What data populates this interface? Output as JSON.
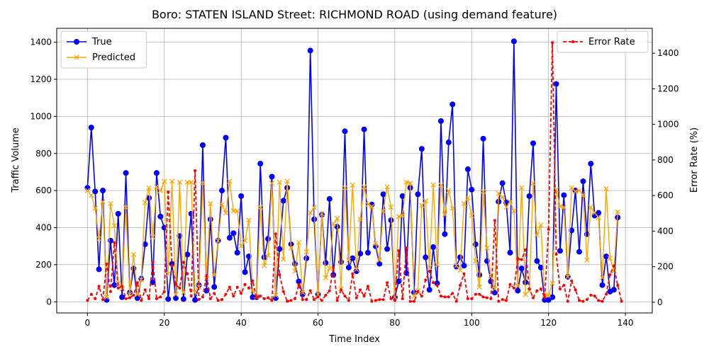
{
  "chart_data": {
    "type": "line",
    "title": "Boro: STATEN ISLAND Street: RICHMOND ROAD (using demand feature)",
    "xlabel": "Time Index",
    "ylabel": "Traffic Volume",
    "y2label": "Error Rate (%)",
    "xlim": [
      -8,
      147
    ],
    "ylim": [
      -60,
      1475
    ],
    "y2lim": [
      -60,
      1540
    ],
    "xticks": [
      0,
      20,
      40,
      60,
      80,
      100,
      120,
      140
    ],
    "yticks": [
      0,
      200,
      400,
      600,
      800,
      1000,
      1200,
      1400
    ],
    "y2ticks": [
      0,
      200,
      400,
      600,
      800,
      1000,
      1200,
      1400
    ],
    "grid": true,
    "legend_left": "upper-left",
    "legend_right": "upper-right",
    "colors": {
      "true": "#0000ff",
      "predicted": "#ffa500",
      "error": "#ff0000"
    },
    "series": [
      {
        "name": "True",
        "axis": "left",
        "style": "line-circle",
        "values": [
          615,
          940,
          595,
          175,
          600,
          10,
          330,
          90,
          475,
          25,
          695,
          50,
          180,
          20,
          125,
          310,
          560,
          105,
          695,
          460,
          400,
          15,
          205,
          20,
          355,
          15,
          255,
          475,
          10,
          90,
          845,
          60,
          445,
          80,
          330,
          600,
          885,
          345,
          370,
          265,
          570,
          160,
          245,
          25,
          25,
          745,
          240,
          340,
          675,
          20,
          285,
          545,
          615,
          310,
          205,
          110,
          40,
          235,
          1355,
          445,
          40,
          470,
          210,
          555,
          145,
          405,
          215,
          920,
          185,
          235,
          165,
          260,
          930,
          265,
          525,
          300,
          205,
          580,
          285,
          440,
          25,
          110,
          570,
          155,
          615,
          50,
          580,
          825,
          240,
          65,
          295,
          100,
          975,
          365,
          860,
          1065,
          190,
          240,
          195,
          715,
          605,
          310,
          145,
          880,
          220,
          110,
          50,
          540,
          640,
          535,
          265,
          1405,
          60,
          180,
          105,
          570,
          855,
          220,
          185,
          10,
          10,
          25,
          1175,
          275,
          575,
          135,
          385,
          600,
          270,
          650,
          365,
          745,
          465,
          480,
          90,
          245,
          55,
          65,
          455
        ]
      },
      {
        "name": "Predicted",
        "axis": "left",
        "style": "line-x",
        "values": [
          600,
          575,
          505,
          340,
          540,
          25,
          530,
          410,
          100,
          70,
          510,
          40,
          255,
          40,
          120,
          535,
          615,
          350,
          620,
          600,
          650,
          150,
          650,
          40,
          645,
          50,
          645,
          645,
          50,
          80,
          640,
          125,
          530,
          145,
          330,
          525,
          480,
          650,
          490,
          490,
          300,
          330,
          440,
          60,
          30,
          510,
          195,
          250,
          640,
          35,
          645,
          230,
          650,
          290,
          165,
          320,
          50,
          270,
          480,
          510,
          40,
          475,
          130,
          180,
          420,
          450,
          70,
          615,
          225,
          630,
          175,
          445,
          620,
          525,
          515,
          315,
          225,
          490,
          620,
          510,
          25,
          460,
          465,
          645,
          640,
          30,
          60,
          520,
          545,
          185,
          630,
          200,
          630,
          470,
          600,
          505,
          195,
          170,
          530,
          560,
          465,
          220,
          80,
          595,
          290,
          140,
          70,
          585,
          565,
          510,
          540,
          490,
          85,
          615,
          40,
          60,
          640,
          360,
          415,
          35,
          35,
          100,
          605,
          515,
          510,
          135,
          615,
          595,
          600,
          575,
          225,
          510,
          480,
          455,
          130,
          610,
          235,
          165,
          485
        ]
      },
      {
        "name": "Error Rate",
        "axis": "right",
        "style": "dashed-dot",
        "values": [
          10,
          45,
          20,
          90,
          15,
          215,
          60,
          335,
          80,
          90,
          20,
          25,
          40,
          110,
          10,
          70,
          20,
          225,
          20,
          30,
          60,
          620,
          205,
          100,
          80,
          225,
          160,
          35,
          740,
          15,
          30,
          150,
          20,
          50,
          10,
          15,
          45,
          85,
          35,
          85,
          50,
          100,
          80,
          120,
          25,
          35,
          20,
          25,
          10,
          385,
          155,
          60,
          5,
          10,
          20,
          100,
          15,
          15,
          65,
          15,
          30,
          10,
          40,
          65,
          195,
          10,
          70,
          35,
          10,
          160,
          25,
          70,
          35,
          90,
          5,
          10,
          15,
          15,
          110,
          20,
          10,
          290,
          20,
          305,
          5,
          5,
          60,
          35,
          125,
          175,
          110,
          95,
          35,
          30,
          30,
          50,
          5,
          95,
          160,
          20,
          20,
          45,
          45,
          30,
          25,
          20,
          460,
          5,
          15,
          10,
          100,
          80,
          245,
          240,
          295,
          75,
          25,
          65,
          75,
          25,
          410,
          1460,
          270,
          75,
          95,
          5,
          120,
          70,
          10,
          5,
          15,
          40,
          35,
          10,
          5,
          45,
          155,
          205,
          95,
          5
        ]
      }
    ]
  }
}
